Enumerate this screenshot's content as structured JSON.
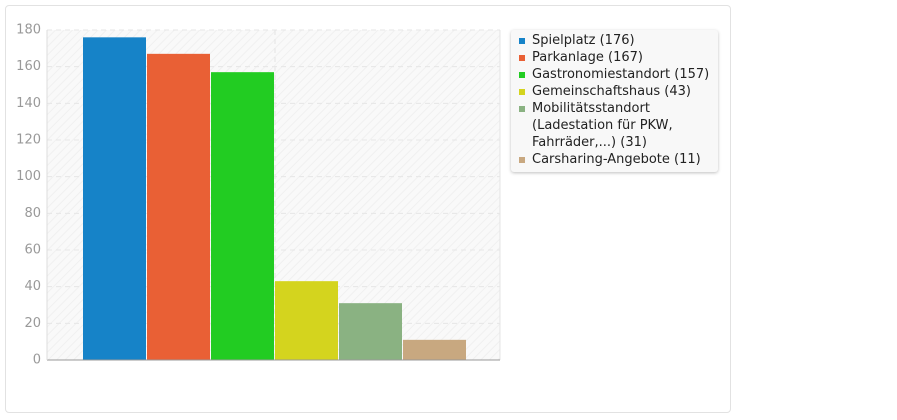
{
  "chart_data": {
    "type": "bar",
    "series": [
      {
        "name": "Spielplatz (176)",
        "color": "#1683c8",
        "values": [
          176
        ]
      },
      {
        "name": "Parkanlage (167)",
        "color": "#e96035",
        "values": [
          167
        ]
      },
      {
        "name": "Gastronomiestandort (157)",
        "color": "#22cc22",
        "values": [
          157
        ]
      },
      {
        "name": "Gemeinschaftshaus (43)",
        "color": "#d4d41e",
        "values": [
          43
        ]
      },
      {
        "name": "Mobilitätsstandort (Ladestation für PKW, Fahrräder,...) (31)",
        "color": "#8ab282",
        "values": [
          31
        ]
      },
      {
        "name": "Carsharing-Angebote (11)",
        "color": "#c8a880",
        "values": [
          11
        ]
      }
    ],
    "ylim": [
      0,
      180
    ],
    "yticks": [
      0,
      20,
      40,
      60,
      80,
      100,
      120,
      140,
      160,
      180
    ],
    "grid": true
  }
}
